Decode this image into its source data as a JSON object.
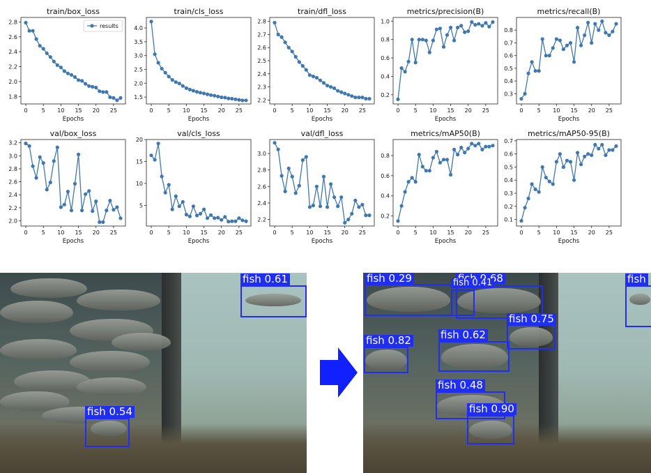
{
  "chart_data": [
    {
      "type": "line",
      "title": "train/box_loss",
      "xlabel": "Epochs",
      "ylabel": "",
      "legend": "top-right",
      "series": [
        {
          "name": "results",
          "x": [
            0,
            1,
            2,
            3,
            4,
            5,
            6,
            7,
            8,
            9,
            10,
            11,
            12,
            13,
            14,
            15,
            16,
            17,
            18,
            19,
            20,
            21,
            22,
            23,
            24,
            25,
            26,
            27
          ],
          "values": [
            2.79,
            2.68,
            2.68,
            2.57,
            2.48,
            2.44,
            2.38,
            2.33,
            2.27,
            2.22,
            2.19,
            2.14,
            2.11,
            2.09,
            2.06,
            2.02,
            2.01,
            1.97,
            1.94,
            1.93,
            1.92,
            1.87,
            1.86,
            1.86,
            1.79,
            1.78,
            1.75,
            1.78
          ]
        }
      ],
      "xlim": [
        -1.4,
        28.4
      ],
      "ylim": [
        1.7,
        2.86
      ],
      "yticks": [
        1.8,
        2.0,
        2.2,
        2.4,
        2.6,
        2.8
      ],
      "xticks": [
        0,
        5,
        10,
        15,
        20,
        25
      ]
    },
    {
      "type": "line",
      "title": "train/cls_loss",
      "xlabel": "Epochs",
      "ylabel": "",
      "series": [
        {
          "x": [
            0,
            1,
            2,
            3,
            4,
            5,
            6,
            7,
            8,
            9,
            10,
            11,
            12,
            13,
            14,
            15,
            16,
            17,
            18,
            19,
            20,
            21,
            22,
            23,
            24,
            25,
            26,
            27
          ],
          "values": [
            4.23,
            3.05,
            2.74,
            2.53,
            2.38,
            2.24,
            2.12,
            2.04,
            1.99,
            1.9,
            1.82,
            1.77,
            1.73,
            1.69,
            1.66,
            1.63,
            1.6,
            1.57,
            1.55,
            1.52,
            1.49,
            1.48,
            1.45,
            1.44,
            1.42,
            1.4,
            1.38,
            1.38
          ]
        }
      ],
      "xlim": [
        -1.4,
        28.4
      ],
      "ylim": [
        1.25,
        4.38
      ],
      "yticks": [
        1.5,
        2.0,
        2.5,
        3.0,
        3.5,
        4.0
      ],
      "xticks": [
        0,
        5,
        10,
        15,
        20,
        25
      ]
    },
    {
      "type": "line",
      "title": "train/dfl_loss",
      "xlabel": "Epochs",
      "ylabel": "",
      "series": [
        {
          "x": [
            0,
            1,
            2,
            3,
            4,
            5,
            6,
            7,
            8,
            9,
            10,
            11,
            12,
            13,
            14,
            15,
            16,
            17,
            18,
            19,
            20,
            21,
            22,
            23,
            24,
            25,
            26,
            27
          ],
          "values": [
            2.79,
            2.7,
            2.68,
            2.64,
            2.6,
            2.57,
            2.53,
            2.49,
            2.46,
            2.43,
            2.39,
            2.38,
            2.37,
            2.35,
            2.33,
            2.31,
            2.3,
            2.29,
            2.27,
            2.26,
            2.25,
            2.24,
            2.23,
            2.22,
            2.22,
            2.22,
            2.21,
            2.21
          ]
        }
      ],
      "xlim": [
        -1.4,
        28.4
      ],
      "ylim": [
        2.17,
        2.83
      ],
      "yticks": [
        2.2,
        2.3,
        2.4,
        2.5,
        2.6,
        2.7,
        2.8
      ],
      "xticks": [
        0,
        5,
        10,
        15,
        20,
        25
      ]
    },
    {
      "type": "line",
      "title": "metrics/precision(B)",
      "xlabel": "Epochs",
      "ylabel": "",
      "series": [
        {
          "x": [
            0,
            1,
            2,
            3,
            4,
            5,
            6,
            7,
            8,
            9,
            10,
            11,
            12,
            13,
            14,
            15,
            16,
            17,
            18,
            19,
            20,
            21,
            22,
            23,
            24,
            25,
            26,
            27
          ],
          "values": [
            0.15,
            0.49,
            0.45,
            0.56,
            0.8,
            0.55,
            0.8,
            0.8,
            0.79,
            0.66,
            0.79,
            0.91,
            0.92,
            0.72,
            0.85,
            0.93,
            0.79,
            0.93,
            0.95,
            0.88,
            0.89,
            0.99,
            0.96,
            0.97,
            0.95,
            0.98,
            0.94,
            0.99
          ]
        }
      ],
      "xlim": [
        -1.4,
        28.4
      ],
      "ylim": [
        0.1,
        1.04
      ],
      "yticks": [
        0.2,
        0.4,
        0.6,
        0.8,
        1.0
      ],
      "xticks": [
        0,
        5,
        10,
        15,
        20,
        25
      ]
    },
    {
      "type": "line",
      "title": "metrics/recall(B)",
      "xlabel": "Epochs",
      "ylabel": "",
      "series": [
        {
          "x": [
            0,
            1,
            2,
            3,
            4,
            5,
            6,
            7,
            8,
            9,
            10,
            11,
            12,
            13,
            14,
            15,
            16,
            17,
            18,
            19,
            20,
            21,
            22,
            23,
            24,
            25,
            26,
            27
          ],
          "values": [
            0.26,
            0.3,
            0.46,
            0.55,
            0.48,
            0.48,
            0.73,
            0.6,
            0.6,
            0.66,
            0.73,
            0.72,
            0.65,
            0.68,
            0.7,
            0.55,
            0.82,
            0.68,
            0.76,
            0.86,
            0.7,
            0.85,
            0.8,
            0.87,
            0.78,
            0.76,
            0.79,
            0.85
          ]
        }
      ],
      "xlim": [
        -1.4,
        28.4
      ],
      "ylim": [
        0.22,
        0.9
      ],
      "yticks": [
        0.3,
        0.4,
        0.5,
        0.6,
        0.7,
        0.8
      ],
      "xticks": [
        0,
        5,
        10,
        15,
        20,
        25
      ]
    },
    {
      "type": "line",
      "title": "val/box_loss",
      "xlabel": "Epochs",
      "ylabel": "",
      "series": [
        {
          "x": [
            0,
            1,
            2,
            3,
            4,
            5,
            6,
            7,
            8,
            9,
            10,
            11,
            12,
            13,
            14,
            15,
            16,
            17,
            18,
            19,
            20,
            21,
            22,
            23,
            24,
            25,
            26,
            27
          ],
          "values": [
            3.19,
            3.15,
            2.84,
            2.66,
            2.98,
            2.89,
            2.48,
            2.59,
            2.92,
            3.13,
            2.21,
            2.25,
            2.45,
            2.16,
            2.57,
            3.02,
            2.16,
            2.41,
            2.46,
            2.15,
            2.3,
            1.98,
            1.98,
            2.16,
            2.31,
            2.17,
            2.21,
            2.04
          ]
        }
      ],
      "xlim": [
        -1.4,
        28.4
      ],
      "ylim": [
        1.92,
        3.25
      ],
      "yticks": [
        2.0,
        2.2,
        2.4,
        2.6,
        2.8,
        3.0,
        3.2
      ],
      "xticks": [
        0,
        5,
        10,
        15,
        20,
        25
      ]
    },
    {
      "type": "line",
      "title": "val/cls_loss",
      "xlabel": "Epochs",
      "ylabel": "",
      "series": [
        {
          "x": [
            0,
            1,
            2,
            3,
            4,
            5,
            6,
            7,
            8,
            9,
            10,
            11,
            12,
            13,
            14,
            15,
            16,
            17,
            18,
            19,
            20,
            21,
            22,
            23,
            24,
            25,
            26,
            27
          ],
          "values": [
            16.4,
            15.4,
            19.1,
            11.6,
            7.9,
            9.7,
            4.1,
            7.1,
            4.8,
            5.8,
            2.9,
            2.5,
            4.8,
            2.7,
            3.1,
            4.1,
            2.1,
            2.8,
            2.1,
            2.2,
            1.7,
            2.4,
            1.3,
            1.4,
            1.4,
            2.1,
            1.6,
            1.4
          ]
        }
      ],
      "xlim": [
        -1.4,
        28.4
      ],
      "ylim": [
        0.3,
        20.0
      ],
      "yticks": [
        5,
        10,
        15,
        20
      ],
      "xticks": [
        0,
        5,
        10,
        15,
        20,
        25
      ]
    },
    {
      "type": "line",
      "title": "val/dfl_loss",
      "xlabel": "Epochs",
      "ylabel": "",
      "series": [
        {
          "x": [
            0,
            1,
            2,
            3,
            4,
            5,
            6,
            7,
            8,
            9,
            10,
            11,
            12,
            13,
            14,
            15,
            16,
            17,
            18,
            19,
            20,
            21,
            22,
            23,
            24,
            25,
            26,
            27
          ],
          "values": [
            3.13,
            3.05,
            2.73,
            2.54,
            2.82,
            2.72,
            2.52,
            2.61,
            2.92,
            2.96,
            2.35,
            2.37,
            2.6,
            2.36,
            2.72,
            2.35,
            2.63,
            2.47,
            2.36,
            2.47,
            2.16,
            2.2,
            2.27,
            2.43,
            2.35,
            2.38,
            2.25,
            2.25
          ]
        }
      ],
      "xlim": [
        -1.4,
        28.4
      ],
      "ylim": [
        2.12,
        3.17
      ],
      "yticks": [
        2.2,
        2.4,
        2.6,
        2.8,
        3.0
      ],
      "xticks": [
        0,
        5,
        10,
        15,
        20,
        25
      ]
    },
    {
      "type": "line",
      "title": "metrics/mAP50(B)",
      "xlabel": "Epochs",
      "ylabel": "",
      "series": [
        {
          "x": [
            0,
            1,
            2,
            3,
            4,
            5,
            6,
            7,
            8,
            9,
            10,
            11,
            12,
            13,
            14,
            15,
            16,
            17,
            18,
            19,
            20,
            21,
            22,
            23,
            24,
            25,
            26,
            27
          ],
          "values": [
            0.15,
            0.3,
            0.44,
            0.54,
            0.58,
            0.54,
            0.81,
            0.69,
            0.65,
            0.65,
            0.78,
            0.84,
            0.73,
            0.76,
            0.76,
            0.61,
            0.86,
            0.81,
            0.88,
            0.83,
            0.87,
            0.92,
            0.9,
            0.92,
            0.86,
            0.89,
            0.89,
            0.9
          ]
        }
      ],
      "xlim": [
        -1.4,
        28.4
      ],
      "ylim": [
        0.1,
        0.96
      ],
      "yticks": [
        0.2,
        0.4,
        0.6,
        0.8
      ],
      "xticks": [
        0,
        5,
        10,
        15,
        20,
        25
      ]
    },
    {
      "type": "line",
      "title": "metrics/mAP50-95(B)",
      "xlabel": "Epochs",
      "ylabel": "",
      "series": [
        {
          "x": [
            0,
            1,
            2,
            3,
            4,
            5,
            6,
            7,
            8,
            9,
            10,
            11,
            12,
            13,
            14,
            15,
            16,
            17,
            18,
            19,
            20,
            21,
            22,
            23,
            24,
            25,
            26,
            27
          ],
          "values": [
            0.09,
            0.19,
            0.26,
            0.37,
            0.33,
            0.31,
            0.5,
            0.42,
            0.39,
            0.37,
            0.54,
            0.6,
            0.5,
            0.55,
            0.54,
            0.4,
            0.61,
            0.52,
            0.58,
            0.6,
            0.59,
            0.67,
            0.64,
            0.67,
            0.59,
            0.63,
            0.63,
            0.66
          ]
        }
      ],
      "xlim": [
        -1.4,
        28.4
      ],
      "ylim": [
        0.05,
        0.71
      ],
      "yticks": [
        0.1,
        0.2,
        0.3,
        0.4,
        0.5,
        0.6,
        0.7
      ],
      "xticks": [
        0,
        5,
        10,
        15,
        20,
        25
      ]
    }
  ],
  "detections_before": [
    {
      "label": "fish 0.61"
    },
    {
      "label": "fish 0.54"
    }
  ],
  "detections_after": [
    {
      "label": "fish 0.29"
    },
    {
      "label": "fish 0.68"
    },
    {
      "label": "fish 0.41"
    },
    {
      "label": "fish 0.75"
    },
    {
      "label": "fish 0.82"
    },
    {
      "label": "fish 0.62"
    },
    {
      "label": "fish 0.48"
    },
    {
      "label": "fish 0.90"
    },
    {
      "label": "fish"
    }
  ],
  "colors": {
    "series": "#3f78b0",
    "detection_box": "#1f2ef0",
    "arrow": "#1020ff"
  }
}
